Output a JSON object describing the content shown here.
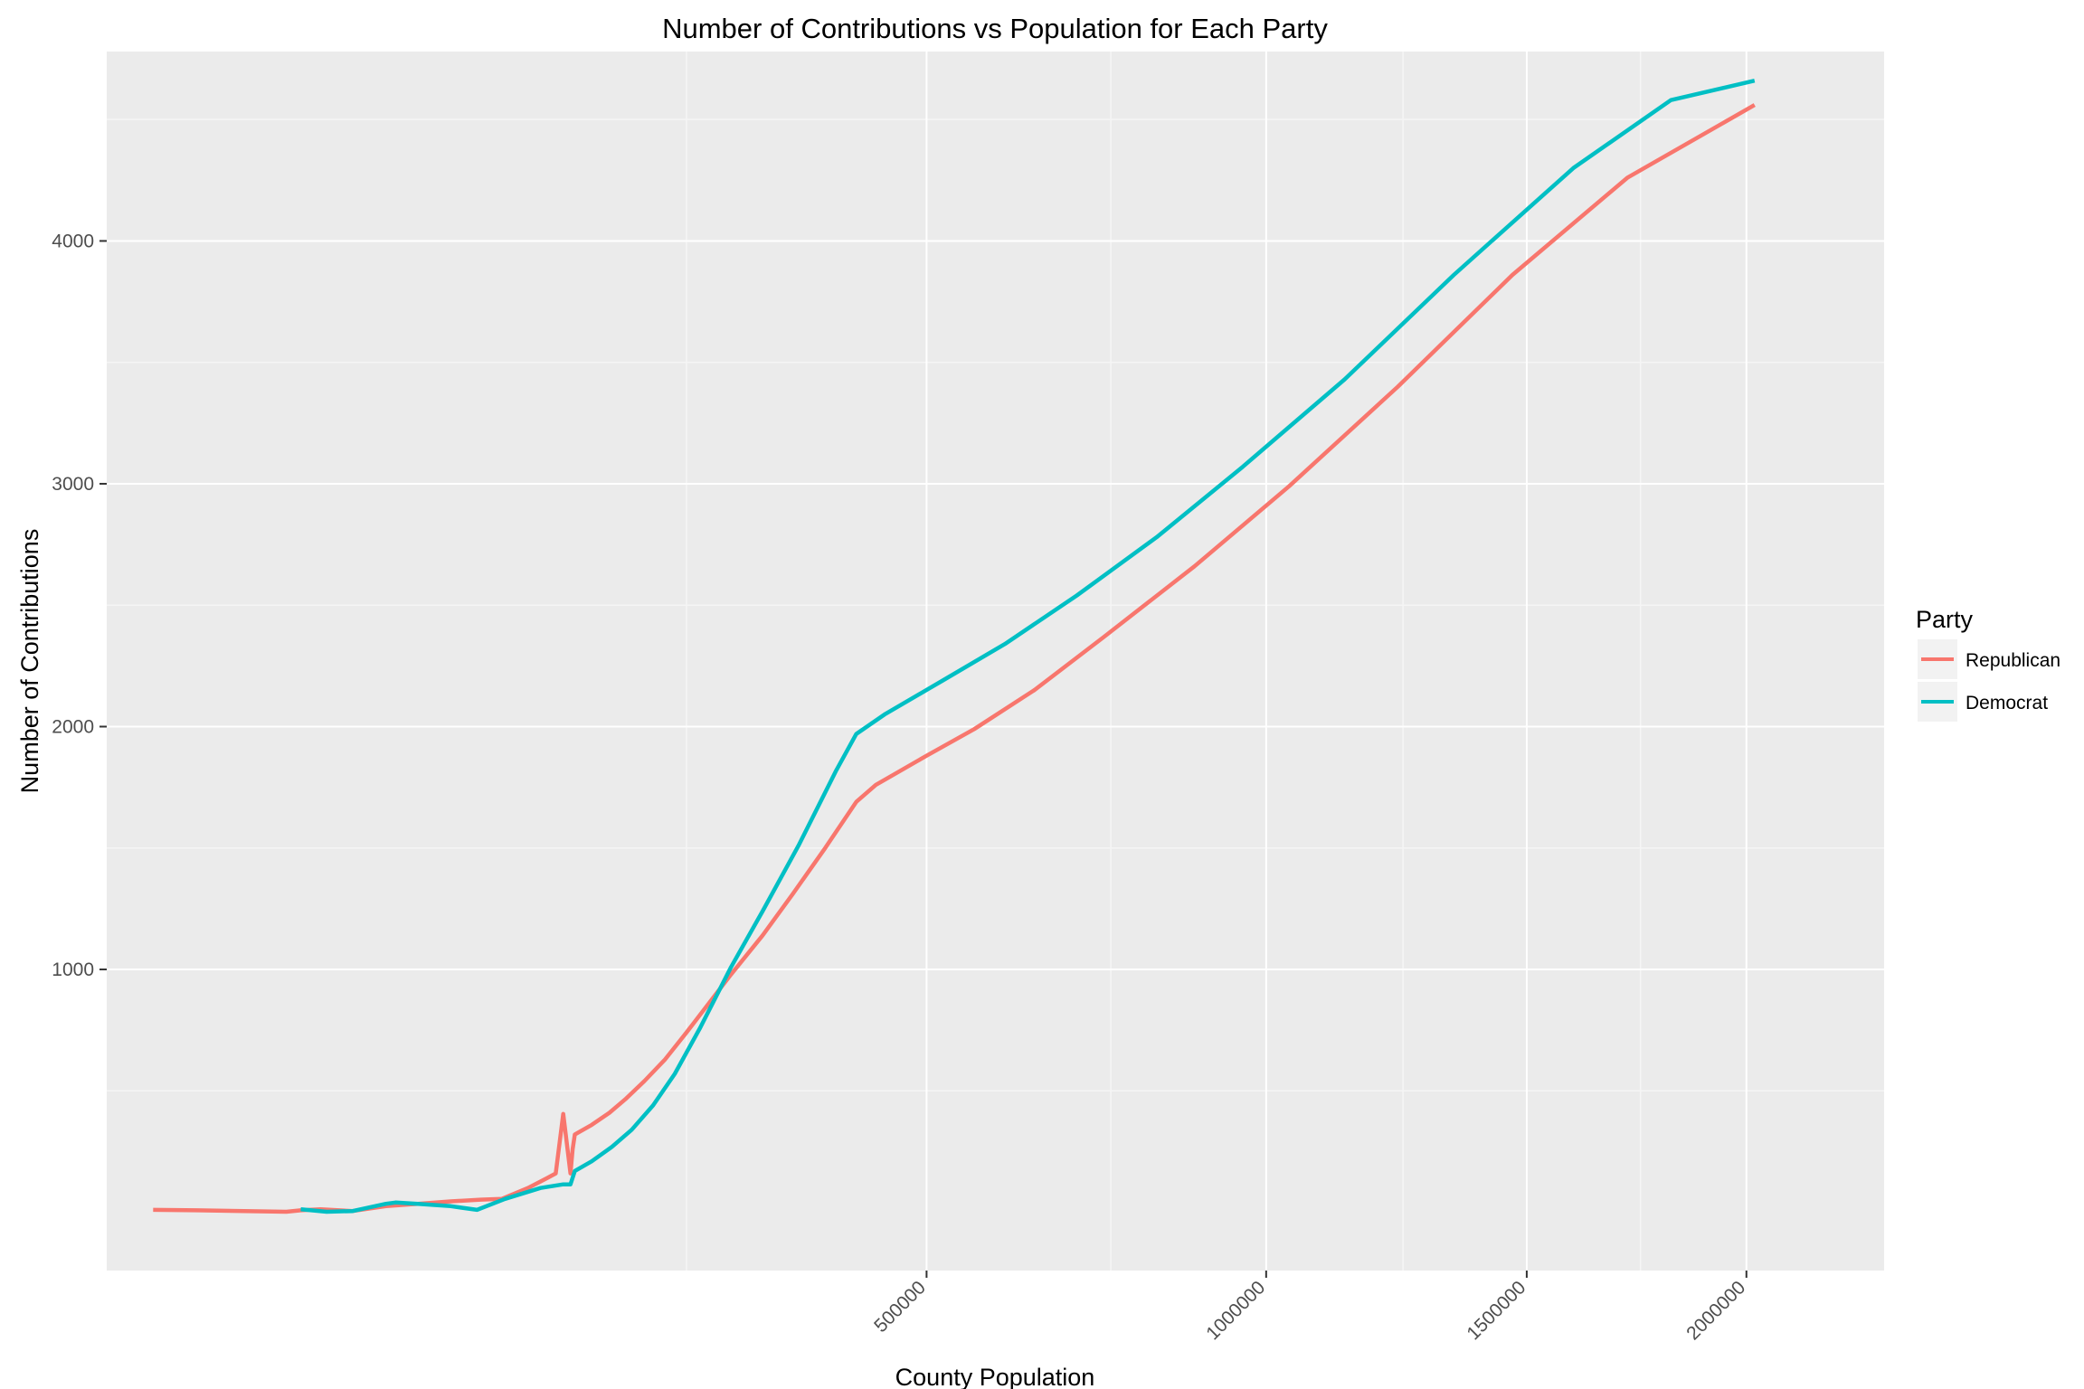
{
  "chart_data": {
    "type": "line",
    "title": "Number of Contributions vs Population for Each Party",
    "xlabel": "County Population",
    "ylabel": "Number of Contributions",
    "x_scale": "sqrt",
    "xlim": [
      0,
      2350000
    ],
    "ylim": [
      -240,
      4780
    ],
    "x_ticks": [
      500000,
      1000000,
      1500000,
      2000000
    ],
    "x_tick_labels": [
      "500000",
      "1000000",
      "1500000",
      "2000000"
    ],
    "x_minor_ticks": [
      250000,
      750000,
      1250000,
      1750000
    ],
    "y_ticks": [
      1000,
      2000,
      3000,
      4000
    ],
    "y_tick_labels": [
      "1000",
      "2000",
      "3000",
      "4000"
    ],
    "y_minor_ticks": [
      500,
      1500,
      2500,
      3500,
      4500
    ],
    "grid": true,
    "panel_background": "#EBEBEB",
    "legend": {
      "title": "Party",
      "position": "right"
    },
    "series": [
      {
        "name": "Republican",
        "color": "#F8766D",
        "points": [
          [
            1600,
            10
          ],
          [
            6000,
            8
          ],
          [
            14000,
            5
          ],
          [
            24000,
            2
          ],
          [
            28000,
            8
          ],
          [
            34000,
            12
          ],
          [
            45000,
            5
          ],
          [
            58000,
            25
          ],
          [
            72000,
            35
          ],
          [
            88000,
            45
          ],
          [
            104000,
            52
          ],
          [
            116000,
            55
          ],
          [
            132000,
            100
          ],
          [
            144000,
            140
          ],
          [
            150000,
            160
          ],
          [
            155000,
            405
          ],
          [
            160000,
            160
          ],
          [
            161500,
            260
          ],
          [
            163000,
            320
          ],
          [
            175000,
            360
          ],
          [
            188000,
            410
          ],
          [
            200000,
            465
          ],
          [
            215000,
            540
          ],
          [
            232000,
            630
          ],
          [
            250000,
            740
          ],
          [
            268000,
            850
          ],
          [
            290000,
            980
          ],
          [
            320000,
            1140
          ],
          [
            350000,
            1310
          ],
          [
            384000,
            1500
          ],
          [
            418000,
            1690
          ],
          [
            440000,
            1760
          ],
          [
            500000,
            1880
          ],
          [
            560000,
            1990
          ],
          [
            640000,
            2150
          ],
          [
            740000,
            2370
          ],
          [
            880000,
            2660
          ],
          [
            1040000,
            2990
          ],
          [
            1240000,
            3400
          ],
          [
            1470000,
            3860
          ],
          [
            1720000,
            4260
          ],
          [
            2020000,
            4560
          ]
        ]
      },
      {
        "name": "Democrat",
        "color": "#00BFC4",
        "points": [
          [
            28000,
            12
          ],
          [
            36000,
            2
          ],
          [
            45000,
            5
          ],
          [
            58000,
            35
          ],
          [
            62000,
            40
          ],
          [
            72000,
            35
          ],
          [
            88000,
            25
          ],
          [
            102000,
            10
          ],
          [
            118000,
            55
          ],
          [
            140000,
            100
          ],
          [
            155000,
            115
          ],
          [
            160000,
            115
          ],
          [
            163000,
            170
          ],
          [
            175000,
            210
          ],
          [
            190000,
            270
          ],
          [
            205000,
            340
          ],
          [
            222000,
            440
          ],
          [
            240000,
            570
          ],
          [
            262000,
            760
          ],
          [
            290000,
            1010
          ],
          [
            320000,
            1240
          ],
          [
            356000,
            1510
          ],
          [
            396000,
            1820
          ],
          [
            418000,
            1970
          ],
          [
            450000,
            2050
          ],
          [
            520000,
            2190
          ],
          [
            600000,
            2340
          ],
          [
            700000,
            2540
          ],
          [
            820000,
            2780
          ],
          [
            960000,
            3070
          ],
          [
            1140000,
            3430
          ],
          [
            1350000,
            3860
          ],
          [
            1600000,
            4300
          ],
          [
            1820000,
            4580
          ],
          [
            2020000,
            4660
          ]
        ]
      }
    ]
  }
}
